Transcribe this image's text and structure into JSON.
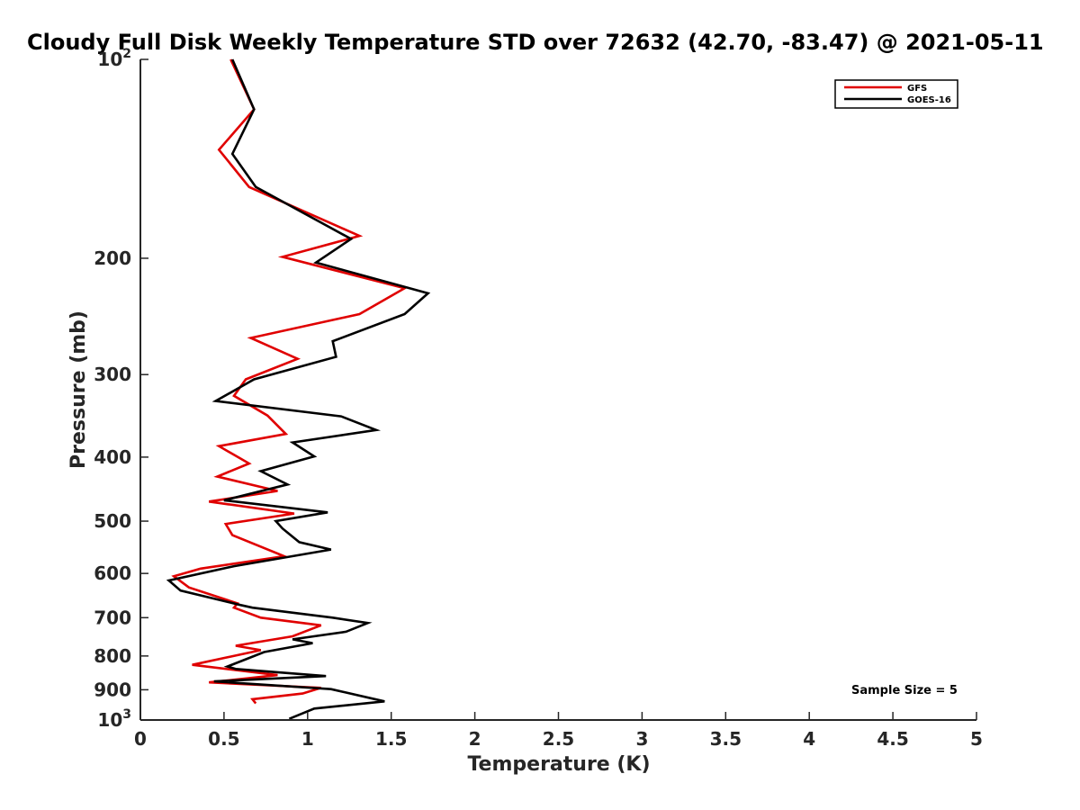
{
  "chart_data": {
    "type": "line",
    "title": "Cloudy Full Disk Weekly Temperature STD over 72632 (42.70, -83.47) @ 2021-05-11",
    "xlabel": "Temperature (K)",
    "ylabel": "Pressure (mb)",
    "xlim": [
      0,
      5
    ],
    "ylim": [
      100,
      1000
    ],
    "y_scale": "log",
    "y_reversed": true,
    "grid": false,
    "legend_position": "top-right",
    "x_ticks": [
      "0",
      "0.5",
      "1",
      "1.5",
      "2",
      "2.5",
      "3",
      "3.5",
      "4",
      "4.5",
      "5"
    ],
    "y_ticks": [
      {
        "value": 100,
        "label": "10",
        "sup": "2"
      },
      {
        "value": 200,
        "label": "200",
        "sup": ""
      },
      {
        "value": 300,
        "label": "300",
        "sup": ""
      },
      {
        "value": 400,
        "label": "400",
        "sup": ""
      },
      {
        "value": 500,
        "label": "500",
        "sup": ""
      },
      {
        "value": 600,
        "label": "600",
        "sup": ""
      },
      {
        "value": 700,
        "label": "700",
        "sup": ""
      },
      {
        "value": 800,
        "label": "800",
        "sup": ""
      },
      {
        "value": 900,
        "label": "900",
        "sup": ""
      },
      {
        "value": 1000,
        "label": "10",
        "sup": "3"
      }
    ],
    "annotation": "Sample Size = 5",
    "series": [
      {
        "name": "GFS",
        "color": "#e00000",
        "points": [
          [
            0.54,
            100
          ],
          [
            0.68,
            119
          ],
          [
            0.47,
            137
          ],
          [
            0.65,
            156
          ],
          [
            1.31,
            185
          ],
          [
            0.85,
            199
          ],
          [
            1.58,
            222
          ],
          [
            1.31,
            243
          ],
          [
            0.66,
            264
          ],
          [
            0.94,
            284
          ],
          [
            0.63,
            305
          ],
          [
            0.56,
            323
          ],
          [
            0.76,
            346
          ],
          [
            0.87,
            369
          ],
          [
            0.47,
            385
          ],
          [
            0.65,
            409
          ],
          [
            0.46,
            428
          ],
          [
            0.82,
            450
          ],
          [
            0.41,
            467
          ],
          [
            0.92,
            487
          ],
          [
            0.51,
            505
          ],
          [
            0.55,
            525
          ],
          [
            0.86,
            565
          ],
          [
            0.36,
            590
          ],
          [
            0.2,
            606
          ],
          [
            0.29,
            630
          ],
          [
            0.58,
            666
          ],
          [
            0.56,
            676
          ],
          [
            0.72,
            700
          ],
          [
            1.08,
            719
          ],
          [
            0.91,
            747
          ],
          [
            0.57,
            772
          ],
          [
            0.72,
            784
          ],
          [
            0.31,
            825
          ],
          [
            0.82,
            855
          ],
          [
            0.41,
            877
          ],
          [
            1.08,
            894
          ],
          [
            0.97,
            912
          ],
          [
            0.67,
            930
          ],
          [
            0.69,
            944
          ]
        ]
      },
      {
        "name": "GOES-16",
        "color": "#000000",
        "points": [
          [
            0.55,
            100
          ],
          [
            0.68,
            119
          ],
          [
            0.55,
            139
          ],
          [
            0.69,
            156
          ],
          [
            1.26,
            187
          ],
          [
            1.05,
            203
          ],
          [
            1.72,
            226
          ],
          [
            1.58,
            243
          ],
          [
            1.15,
            267
          ],
          [
            1.17,
            282
          ],
          [
            0.68,
            305
          ],
          [
            0.45,
            329
          ],
          [
            1.2,
            347
          ],
          [
            1.41,
            364
          ],
          [
            0.91,
            380
          ],
          [
            1.04,
            399
          ],
          [
            0.72,
            420
          ],
          [
            0.88,
            440
          ],
          [
            0.5,
            465
          ],
          [
            1.12,
            485
          ],
          [
            0.81,
            500
          ],
          [
            0.85,
            513
          ],
          [
            0.95,
            538
          ],
          [
            1.14,
            552
          ],
          [
            0.56,
            585
          ],
          [
            0.17,
            615
          ],
          [
            0.24,
            637
          ],
          [
            0.6,
            670
          ],
          [
            0.67,
            676
          ],
          [
            1.15,
            700
          ],
          [
            1.36,
            713
          ],
          [
            1.23,
            735
          ],
          [
            0.91,
            755
          ],
          [
            1.03,
            765
          ],
          [
            0.74,
            789
          ],
          [
            0.52,
            830
          ],
          [
            0.57,
            837
          ],
          [
            1.11,
            858
          ],
          [
            0.44,
            874
          ],
          [
            1.14,
            898
          ],
          [
            1.46,
            937
          ],
          [
            1.04,
            961
          ],
          [
            0.89,
            996
          ]
        ]
      }
    ]
  }
}
